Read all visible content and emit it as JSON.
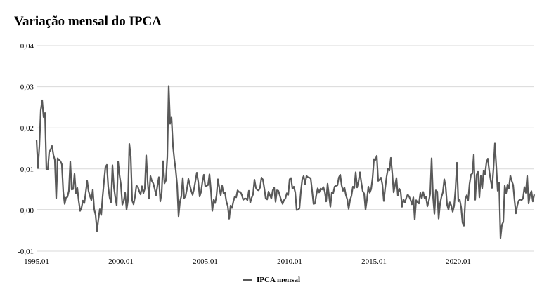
{
  "chart_data": {
    "type": "line",
    "title": "Variação mensal do IPCA",
    "xlabel": "",
    "ylabel": "",
    "x_start": "1995.01",
    "x_frequency": "monthly",
    "ylim": [
      -0.01,
      0.04
    ],
    "y_ticks": [
      "-0,01",
      "0,00",
      "0,01",
      "0,02",
      "0,03",
      "0,04"
    ],
    "x_ticks": [
      "1995.01",
      "2000.01",
      "2005.01",
      "2010.01",
      "2015.01",
      "2020.01"
    ],
    "grid": "horizontal",
    "legend_position": "bottom",
    "color": "#595959",
    "series": [
      {
        "name": "IPCA mensal",
        "values": [
          0.017,
          0.0102,
          0.0155,
          0.0243,
          0.0267,
          0.0226,
          0.0236,
          0.0099,
          0.0099,
          0.0141,
          0.0147,
          0.0156,
          0.0134,
          0.0122,
          0.0029,
          0.0126,
          0.0122,
          0.0119,
          0.0111,
          0.0044,
          0.0015,
          0.003,
          0.0032,
          0.0047,
          0.0118,
          0.005,
          0.0051,
          0.0088,
          0.0041,
          0.0054,
          0.0022,
          -0.0002,
          0.0006,
          0.0023,
          0.0017,
          0.0043,
          0.0071,
          0.0046,
          0.0034,
          0.0024,
          0.005,
          0.0002,
          -0.0012,
          -0.0051,
          -0.0022,
          0.0002,
          -0.0012,
          0.0033,
          0.007,
          0.0105,
          0.011,
          0.0056,
          0.003,
          0.0019,
          0.0109,
          0.0056,
          0.0031,
          0.0011,
          0.0118,
          0.0085,
          0.0062,
          0.0013,
          0.0022,
          0.0042,
          0.0001,
          0.0023,
          0.0161,
          0.0131,
          0.0023,
          0.0014,
          0.0032,
          0.0059,
          0.0057,
          0.0046,
          0.0038,
          0.0058,
          0.0041,
          0.0052,
          0.0133,
          0.007,
          0.0028,
          0.0083,
          0.0071,
          0.0065,
          0.0052,
          0.0036,
          0.006,
          0.008,
          0.0021,
          0.0042,
          0.0119,
          0.0065,
          0.0072,
          0.0129,
          0.0302,
          0.021,
          0.0225,
          0.0157,
          0.0123,
          0.0097,
          0.0061,
          -0.0015,
          0.002,
          0.0034,
          0.0078,
          0.0029,
          0.0034,
          0.0052,
          0.0076,
          0.0061,
          0.0047,
          0.0037,
          0.0051,
          0.0071,
          0.0091,
          0.0069,
          0.0033,
          0.0044,
          0.0069,
          0.0086,
          0.0058,
          0.0059,
          0.0061,
          0.0087,
          0.0049,
          -0.0002,
          0.0025,
          0.0017,
          0.0035,
          0.0075,
          0.0055,
          0.0036,
          0.0059,
          0.0041,
          0.0043,
          0.0021,
          0.001,
          -0.0021,
          0.0011,
          0.0005,
          0.0021,
          0.0033,
          0.0031,
          0.0048,
          0.0044,
          0.0044,
          0.0037,
          0.0025,
          0.0028,
          0.0028,
          0.0024,
          0.0047,
          0.0018,
          0.003,
          0.0038,
          0.0074,
          0.0054,
          0.0049,
          0.0048,
          0.0055,
          0.0079,
          0.0074,
          0.0053,
          0.0028,
          0.0026,
          0.0045,
          0.0036,
          0.0028,
          0.0048,
          0.0055,
          0.002,
          0.0048,
          0.0047,
          0.0036,
          0.0024,
          0.0015,
          0.0024,
          0.0028,
          0.0041,
          0.0037,
          0.0075,
          0.0078,
          0.0052,
          0.0057,
          0.0043,
          0.0,
          0.0001,
          0.0004,
          0.0045,
          0.0075,
          0.0083,
          0.0063,
          0.0083,
          0.008,
          0.0079,
          0.0077,
          0.0047,
          0.0015,
          0.0016,
          0.0037,
          0.0053,
          0.0043,
          0.0052,
          0.005,
          0.0056,
          0.0045,
          0.0021,
          0.0064,
          0.0036,
          0.0008,
          0.0043,
          0.0041,
          0.0057,
          0.0059,
          0.006,
          0.0079,
          0.0086,
          0.006,
          0.0047,
          0.0055,
          0.0037,
          0.0026,
          0.0003,
          0.0024,
          0.0035,
          0.0057,
          0.0054,
          0.0092,
          0.0055,
          0.0069,
          0.0092,
          0.0067,
          0.0046,
          0.004,
          0.0001,
          0.0025,
          0.0057,
          0.0042,
          0.0051,
          0.0078,
          0.0124,
          0.0122,
          0.0132,
          0.0071,
          0.0074,
          0.0079,
          0.0062,
          0.0022,
          0.0054,
          0.0082,
          0.0101,
          0.0096,
          0.0127,
          0.009,
          0.0043,
          0.0061,
          0.0078,
          0.0035,
          0.0052,
          0.0044,
          0.0008,
          0.0026,
          0.0018,
          0.003,
          0.0038,
          0.0033,
          0.0025,
          0.0014,
          0.0031,
          -0.0023,
          0.0024,
          0.0019,
          0.0016,
          0.0042,
          0.0028,
          0.0044,
          0.0029,
          0.0032,
          0.0009,
          0.0022,
          0.004,
          0.0126,
          0.0033,
          -0.0009,
          0.0048,
          0.0045,
          -0.0021,
          0.0015,
          0.0032,
          0.0043,
          0.0075,
          0.0057,
          0.0013,
          0.0001,
          0.0019,
          0.0011,
          -0.0004,
          0.001,
          0.0051,
          0.0115,
          0.0021,
          0.0025,
          0.0007,
          -0.0031,
          -0.0038,
          0.0026,
          0.0036,
          0.0024,
          0.0064,
          0.0086,
          0.0089,
          0.0135,
          0.0025,
          0.0086,
          0.0093,
          0.0031,
          0.0083,
          0.0053,
          0.0096,
          0.0087,
          0.0116,
          0.0125,
          0.0095,
          0.0073,
          0.0054,
          0.0101,
          0.0162,
          0.0106,
          0.0047,
          0.0067,
          -0.0068,
          -0.0036,
          -0.0029,
          0.0059,
          0.0041,
          0.0062,
          0.0053,
          0.0084,
          0.0071,
          0.0061,
          0.0023,
          -0.0008,
          0.0012,
          0.0023,
          0.0026,
          0.0024,
          0.0028,
          0.0056,
          0.0042,
          0.0083,
          0.0016,
          0.0038,
          0.0046,
          0.0021,
          0.0038
        ]
      }
    ]
  }
}
